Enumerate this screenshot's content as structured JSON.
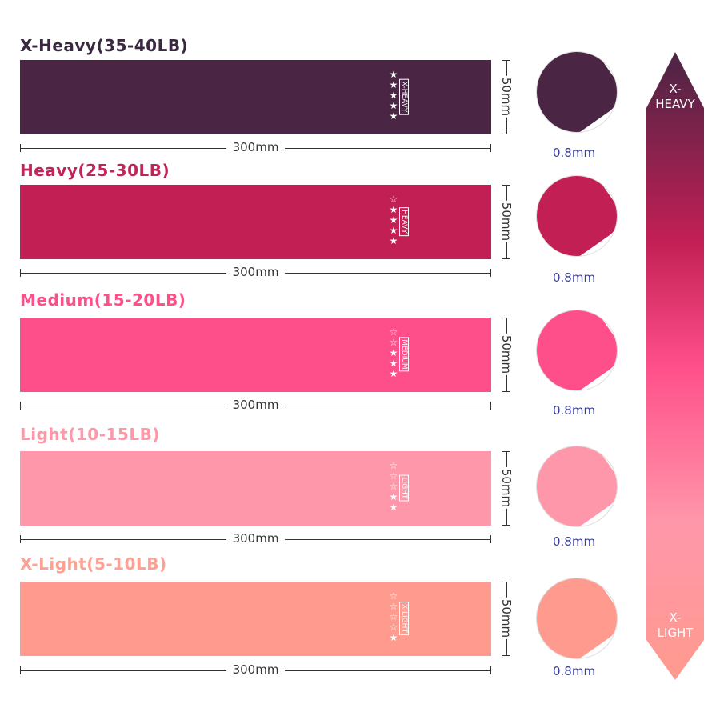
{
  "bands": [
    {
      "title": "X-Heavy(35-40LB)",
      "tag": "X-HEAVY",
      "stars_filled": 5,
      "width": "300mm",
      "height": "50mm",
      "thickness": "0.8mm",
      "color": "#4a2544",
      "title_color": "#3a2842"
    },
    {
      "title": "Heavy(25-30LB)",
      "tag": "HEAVY",
      "stars_filled": 4,
      "width": "300mm",
      "height": "50mm",
      "thickness": "0.8mm",
      "color": "#c21f55",
      "title_color": "#c2245a"
    },
    {
      "title": "Medium(15-20LB)",
      "tag": "MEDIUM",
      "stars_filled": 3,
      "width": "300mm",
      "height": "50mm",
      "thickness": "0.8mm",
      "color": "#ff4f8a",
      "title_color": "#ff4f88"
    },
    {
      "title": "Light(10-15LB)",
      "tag": "LIGHT",
      "stars_filled": 2,
      "width": "300mm",
      "height": "50mm",
      "thickness": "0.8mm",
      "color": "#ff97aa",
      "title_color": "#ff97a8"
    },
    {
      "title": "X-Light(5-10LB)",
      "tag": "X-LIGHT",
      "stars_filled": 1,
      "width": "300mm",
      "height": "50mm",
      "thickness": "0.8mm",
      "color": "#ff9a8e",
      "title_color": "#ffa090"
    }
  ],
  "scale": {
    "top_label_1": "X-",
    "top_label_2": "HEAVY",
    "bottom_label_1": "X-",
    "bottom_label_2": "LIGHT"
  }
}
